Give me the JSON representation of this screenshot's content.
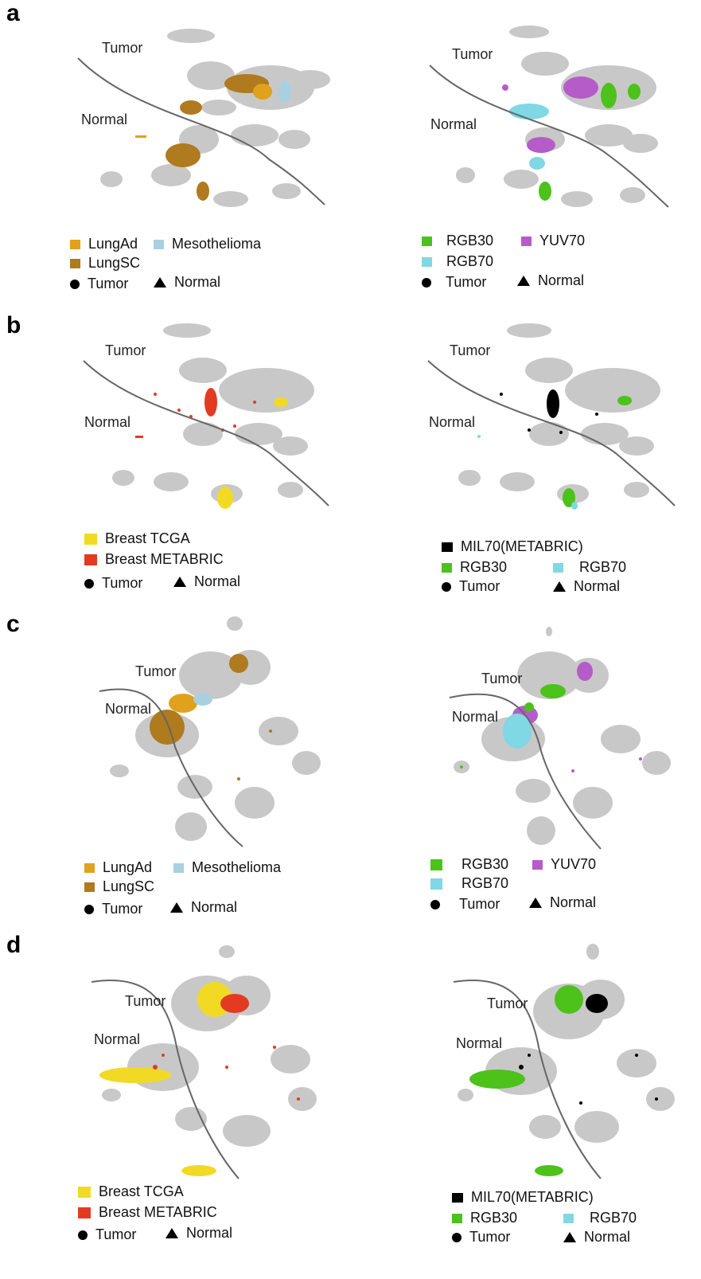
{
  "panels": [
    {
      "letter": "a",
      "left": {
        "tumor": "Tumor",
        "normal": "Normal",
        "legend": [
          {
            "label": "LungAd",
            "color": "#E0A11C"
          },
          {
            "label": "Mesothelioma",
            "color": "#A8D0E0"
          },
          {
            "label": "LungSC",
            "color": "#B07A1E"
          }
        ],
        "shape_tumor": "Tumor",
        "shape_normal": "Normal"
      },
      "right": {
        "tumor": "Tumor",
        "normal": "Normal",
        "legend": [
          {
            "label": "RGB30",
            "color": "#4CC21B"
          },
          {
            "label": "YUV70",
            "color": "#B55CC9"
          },
          {
            "label": "RGB70",
            "color": "#7FD8E3"
          }
        ],
        "shape_tumor": "Tumor",
        "shape_normal": "Normal"
      }
    },
    {
      "letter": "b",
      "left": {
        "tumor": "Tumor",
        "normal": "Normal",
        "legend": [
          {
            "label": "Breast TCGA",
            "color": "#F2DA24"
          },
          {
            "label": "Breast METABRIC",
            "color": "#E23B22"
          }
        ],
        "shape_tumor": "Tumor",
        "shape_normal": "Normal"
      },
      "right": {
        "tumor": "Tumor",
        "normal": "Normal",
        "legend": [
          {
            "label": "MIL70(METABRIC)",
            "color": "#000000"
          },
          {
            "label": "RGB30",
            "color": "#4CC21B"
          },
          {
            "label": "RGB70",
            "color": "#7FD8E3"
          }
        ],
        "shape_tumor": "Tumor",
        "shape_normal": "Normal"
      }
    },
    {
      "letter": "c",
      "left": {
        "tumor": "Tumor",
        "normal": "Normal",
        "legend": [
          {
            "label": "LungAd",
            "color": "#E0A11C"
          },
          {
            "label": "Mesothelioma",
            "color": "#A8D0E0"
          },
          {
            "label": "LungSC",
            "color": "#B07A1E"
          }
        ],
        "shape_tumor": "Tumor",
        "shape_normal": "Normal"
      },
      "right": {
        "tumor": "Tumor",
        "normal": "Normal",
        "legend": [
          {
            "label": "RGB30",
            "color": "#4CC21B"
          },
          {
            "label": "YUV70",
            "color": "#B55CC9"
          },
          {
            "label": "RGB70",
            "color": "#7FD8E3"
          }
        ],
        "shape_tumor": "Tumor",
        "shape_normal": "Normal"
      }
    },
    {
      "letter": "d",
      "left": {
        "tumor": "Tumor",
        "normal": "Normal",
        "legend": [
          {
            "label": "Breast TCGA",
            "color": "#F2DA24"
          },
          {
            "label": "Breast METABRIC",
            "color": "#E23B22"
          }
        ],
        "shape_tumor": "Tumor",
        "shape_normal": "Normal"
      },
      "right": {
        "tumor": "Tumor",
        "normal": "Normal",
        "legend": [
          {
            "label": "MIL70(METABRIC)",
            "color": "#000000"
          },
          {
            "label": "RGB30",
            "color": "#4CC21B"
          },
          {
            "label": "RGB70",
            "color": "#7FD8E3"
          }
        ],
        "shape_tumor": "Tumor",
        "shape_normal": "Normal"
      }
    }
  ]
}
